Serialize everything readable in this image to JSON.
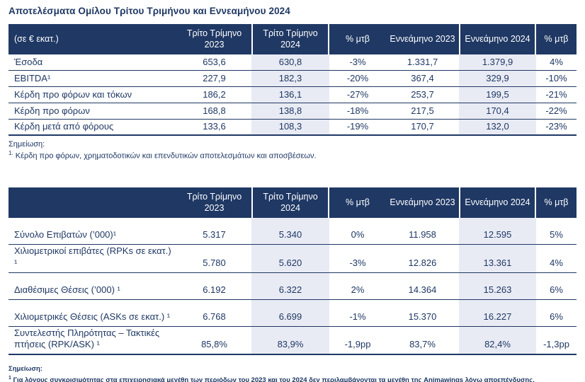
{
  "title": "Αποτελέσματα Ομίλου Τρίτου Τριμήνου και Εννεαμήνου 2024",
  "colors": {
    "navy_header": "#1F3864",
    "text_blue": "#1F3864",
    "highlight_column": "#E9EBF4",
    "background": "#FFFFFF"
  },
  "t1": {
    "headers": [
      "(σε € εκατ.)",
      "Τρίτο Τρίμηνο 2023",
      "Τρίτο Τρίμηνο 2024",
      "% μτβ",
      "Εννεάμηνο 2023",
      "Εννεάμηνο 2024",
      "% μτβ"
    ],
    "rows": [
      [
        "Έσοδα",
        "653,6",
        "630,8",
        "-3%",
        "1.331,7",
        "1.379,9",
        "4%"
      ],
      [
        "EBITDA¹",
        "227,9",
        "182,3",
        "-20%",
        "367,4",
        "329,9",
        "-10%"
      ],
      [
        "Κέρδη προ φόρων και τόκων",
        "186,2",
        "136,1",
        "-27%",
        "253,7",
        "199,5",
        "-21%"
      ],
      [
        "Κέρδη προ φόρων",
        "168,8",
        "138,8",
        "-18%",
        "217,5",
        "170,4",
        "-22%"
      ],
      [
        "Κέρδη μετά από φόρους",
        "133,6",
        "108,3",
        "-19%",
        "170,7",
        "132,0",
        "-23%"
      ]
    ],
    "note_label": "Σημείωση:",
    "note_marker": "1.",
    "note_text": " Κέρδη προ φόρων, χρηματοδοτικών και επενδυτικών αποτελεσμάτων και αποσβέσεων."
  },
  "t2": {
    "headers": [
      "",
      "Τρίτο Τρίμηνο 2023",
      "Τρίτο Τρίμηνο 2024",
      "% μτβ",
      "Εννεάμηνο 2023",
      "Εννεάμηνο 2024",
      "% μτβ"
    ],
    "rows": [
      [
        "Σύνολο Επιβατών (’000)¹",
        "5.317",
        "5.340",
        "0%",
        "11.958",
        "12.595",
        "5%"
      ],
      [
        "Χιλιομετρικοί επιβάτες (RPKs σε εκατ.) ¹",
        "5.780",
        "5.620",
        "-3%",
        "12.826",
        "13.361",
        "4%"
      ],
      [
        "Διαθέσιμες Θέσεις (’000) ¹",
        "6.192",
        "6.322",
        "2%",
        "14.364",
        "15.263",
        "6%"
      ],
      [
        "Χιλιομετρικές Θέσεις (ASKs σε εκατ.) ¹",
        "6.768",
        "6.699",
        "-1%",
        "15.370",
        "16.227",
        "6%"
      ],
      [
        "Συντελεστής Πληρότητας – Τακτικές πτήσεις (RPK/ASK) ¹",
        "85,8%",
        "83,9%",
        "-1,9pp",
        "83,7%",
        "82,4%",
        "-1,3pp"
      ]
    ],
    "note_label": "Σημείωση:",
    "note_marker": "1",
    "note_text": " Για λόγους συγκρισιμότητας στα επιχειρησιακά μεγέθη των περιόδων του 2023 και του 2024 δεν περιλαμβάνονται τα μεγέθη της Animawings λόγω αποεπένδυσης."
  }
}
